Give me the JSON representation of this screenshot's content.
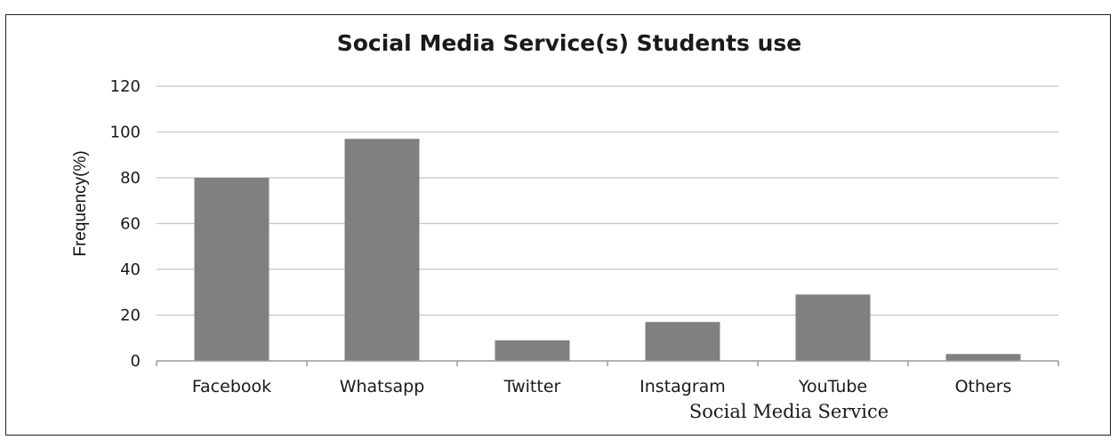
{
  "chart_data": {
    "type": "bar",
    "title": "Social Media Service(s) Students use",
    "xlabel": "Social Media Service",
    "ylabel": "Frequency(%)",
    "categories": [
      "Facebook",
      "Whatsapp",
      "Twitter",
      "Instagram",
      "YouTube",
      "Others"
    ],
    "values": [
      80,
      97,
      9,
      17,
      29,
      3
    ],
    "ylim": [
      0,
      120
    ],
    "yticks": [
      0,
      20,
      40,
      60,
      80,
      100,
      120
    ],
    "grid": true,
    "bar_color": "#808080"
  }
}
